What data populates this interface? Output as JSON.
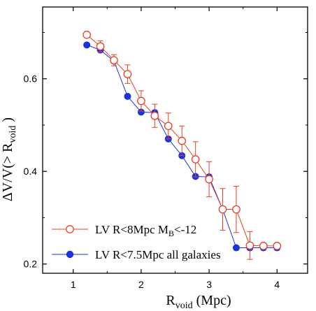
{
  "chart_data": {
    "type": "line",
    "xlabel": {
      "main": "R",
      "sub": "void",
      "rest": " (Mpc)"
    },
    "ylabel": {
      "main": "ΔV/V(> R",
      "sub": "void",
      "rest": " )"
    },
    "xlim": [
      0.55,
      4.45
    ],
    "ylim": [
      0.18,
      0.755
    ],
    "xticks": [
      1,
      2,
      3,
      4
    ],
    "yticks": [
      0.2,
      0.4,
      0.6
    ],
    "xtick_labels": [
      "1",
      "2",
      "3",
      "4"
    ],
    "ytick_labels": [
      "0.2",
      "0.4",
      "0.6"
    ],
    "grid": false,
    "legend_position": "bottom-left",
    "series": [
      {
        "name": "LV R<8Mpc M",
        "name_sub": "B",
        "name_rest": "<-12",
        "color": "#e84020",
        "marker": "open-circle",
        "x": [
          1.2,
          1.4,
          1.6,
          1.8,
          2.0,
          2.2,
          2.4,
          2.6,
          2.8,
          3.0,
          3.2,
          3.4,
          3.6,
          3.8,
          4.0
        ],
        "y": [
          0.695,
          0.67,
          0.64,
          0.61,
          0.552,
          0.52,
          0.498,
          0.466,
          0.426,
          0.383,
          0.318,
          0.318,
          0.24,
          0.239,
          0.239
        ],
        "err": [
          0.005,
          0.012,
          0.012,
          0.02,
          0.022,
          0.025,
          0.028,
          0.032,
          0.038,
          0.038,
          0.045,
          0.05,
          0.03,
          0.006,
          0.006
        ]
      },
      {
        "name": "LV R<7.5Mpc all  galaxies",
        "name_sub": "",
        "name_rest": "",
        "color": "#1a33e0",
        "marker": "filled-circle",
        "x": [
          1.2,
          1.4,
          1.6,
          1.8,
          2.0,
          2.2,
          2.4,
          2.6,
          2.8,
          3.0,
          3.2,
          3.4,
          3.6,
          3.8,
          4.0
        ],
        "y": [
          0.673,
          0.662,
          0.638,
          0.562,
          0.528,
          0.527,
          0.47,
          0.434,
          0.389,
          0.388,
          0.318,
          0.235,
          0.235,
          0.235,
          0.235
        ]
      }
    ]
  }
}
